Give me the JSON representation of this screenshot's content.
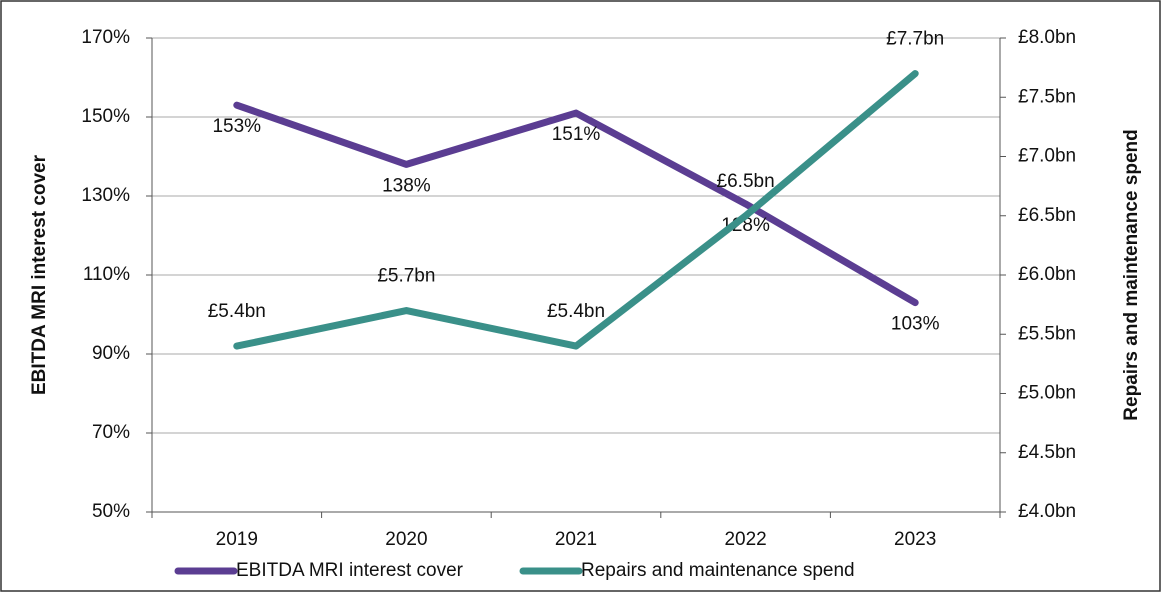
{
  "chart_data": {
    "type": "line",
    "categories": [
      "2019",
      "2020",
      "2021",
      "2022",
      "2023"
    ],
    "y_label": "EBITDA MRI interest cover",
    "y2_label": "Repairs and maintenance spend",
    "ylim": [
      50,
      170
    ],
    "yticks": [
      {
        "value": 50,
        "label": "50%"
      },
      {
        "value": 70,
        "label": "70%"
      },
      {
        "value": 90,
        "label": "90%"
      },
      {
        "value": 110,
        "label": "110%"
      },
      {
        "value": 130,
        "label": "130%"
      },
      {
        "value": 150,
        "label": "150%"
      },
      {
        "value": 170,
        "label": "170%"
      }
    ],
    "y2lim": [
      4.0,
      8.0
    ],
    "y2ticks": [
      {
        "value": 4.0,
        "label": "£4.0bn"
      },
      {
        "value": 4.5,
        "label": "£4.5bn"
      },
      {
        "value": 5.0,
        "label": "£5.0bn"
      },
      {
        "value": 5.5,
        "label": "£5.5bn"
      },
      {
        "value": 6.0,
        "label": "£6.0bn"
      },
      {
        "value": 6.5,
        "label": "£6.5bn"
      },
      {
        "value": 7.0,
        "label": "£7.0bn"
      },
      {
        "value": 7.5,
        "label": "£7.5bn"
      },
      {
        "value": 8.0,
        "label": "£8.0bn"
      }
    ],
    "grid": true,
    "legend": "bottom",
    "series": [
      {
        "name": "EBITDA MRI interest cover",
        "color": "#5b3d92",
        "values": [
          153,
          138,
          151,
          128,
          103
        ],
        "value_labels": [
          "153%",
          "138%",
          "151%",
          "128%",
          "103%"
        ],
        "label_position": "below"
      },
      {
        "name": "Repairs and maintenance spend",
        "color": "#3a9089",
        "axis": "y2",
        "values": [
          5.4,
          5.7,
          5.4,
          6.5,
          7.7
        ],
        "value_labels": [
          "£5.4bn",
          "£5.7bn",
          "£5.4bn",
          "£6.5bn",
          "£7.7bn"
        ],
        "label_position": "above"
      }
    ]
  }
}
